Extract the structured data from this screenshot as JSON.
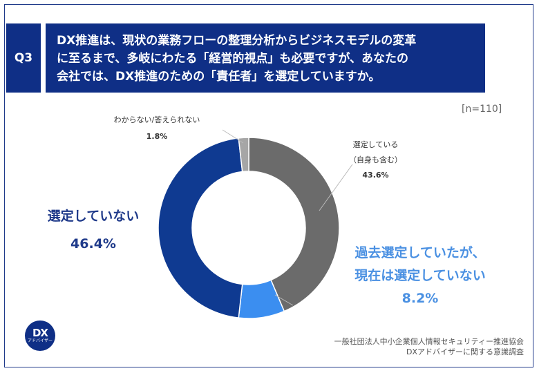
{
  "question": {
    "badge": "Q3",
    "lines": [
      "DX推進は、現状の業務フローの整理分析からビジネスモデルの変革",
      "に至るまで、多岐にわたる「経営的視点」も必要ですが、あなたの",
      "会社では、DX推進のための「責任者」を選定していますか。"
    ]
  },
  "sample_size": "[n=110]",
  "chart_data": {
    "type": "pie",
    "donut": true,
    "sample_size": "n=110",
    "slices": [
      {
        "label": "選定している（自身も含む）",
        "value": 43.6,
        "color": "#6b6b6b"
      },
      {
        "label": "過去選定していたが、現在は選定していない",
        "value": 8.2,
        "color": "#3b8ef0"
      },
      {
        "label": "選定していない",
        "value": 46.4,
        "color": "#0f3a91"
      },
      {
        "label": "わからない/答えられない",
        "value": 1.8,
        "color": "#a6a6a6"
      }
    ],
    "label_text": {
      "selected": [
        "選定している",
        "（自身も含む）"
      ],
      "selected_pct": "43.6%",
      "unknown": "わからない/答えられない",
      "unknown_pct": "1.8%",
      "not_selected": "選定していない",
      "not_selected_pct": "46.4%",
      "past": [
        "過去選定していたが、",
        "現在は選定していない"
      ],
      "past_pct": "8.2%"
    }
  },
  "logo": {
    "main": "DX",
    "sub": "アドバイザー"
  },
  "source": [
    "一般社団法人中小企業個人情報セキュリティー推進協会",
    "DXアドバイザーに関する意識調査"
  ]
}
